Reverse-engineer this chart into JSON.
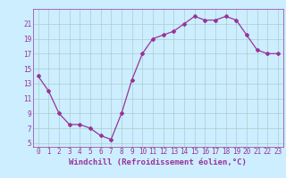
{
  "x": [
    0,
    1,
    2,
    3,
    4,
    5,
    6,
    7,
    8,
    9,
    10,
    11,
    12,
    13,
    14,
    15,
    16,
    17,
    18,
    19,
    20,
    21,
    22,
    23
  ],
  "y": [
    14,
    12,
    9,
    7.5,
    7.5,
    7,
    6,
    5.5,
    9,
    13.5,
    17,
    19,
    19.5,
    20,
    21,
    22,
    21.5,
    21.5,
    22,
    21.5,
    19.5,
    17.5,
    17,
    17
  ],
  "line_color": "#993399",
  "marker": "D",
  "marker_size": 2,
  "bg_color": "#cceeff",
  "grid_color": "#aacccc",
  "xlabel": "Windchill (Refroidissement éolien,°C)",
  "xlim_min": -0.5,
  "xlim_max": 23.5,
  "ylim_min": 4.5,
  "ylim_max": 23,
  "yticks": [
    5,
    7,
    9,
    11,
    13,
    15,
    17,
    19,
    21
  ],
  "xticks": [
    0,
    1,
    2,
    3,
    4,
    5,
    6,
    7,
    8,
    9,
    10,
    11,
    12,
    13,
    14,
    15,
    16,
    17,
    18,
    19,
    20,
    21,
    22,
    23
  ],
  "tick_color": "#993399",
  "label_color": "#993399",
  "font_size": 5.5,
  "xlabel_fontsize": 6.5,
  "lw": 0.9
}
